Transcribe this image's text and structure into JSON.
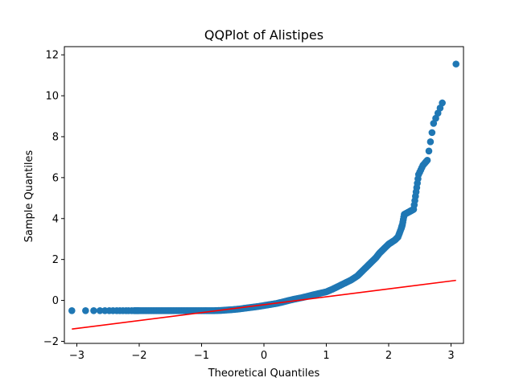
{
  "chart_data": {
    "type": "scatter",
    "title": "QQPlot of Alistipes",
    "xlabel": "Theoretical Quantiles",
    "ylabel": "Sample Quantiles",
    "xlim": [
      -3.2,
      3.2
    ],
    "ylim": [
      -2.1,
      12.4
    ],
    "xticks": [
      -3,
      -2,
      -1,
      0,
      1,
      2,
      3
    ],
    "yticks": [
      -2,
      0,
      2,
      4,
      6,
      8,
      10,
      12
    ],
    "grid": false,
    "colors": {
      "points": "#1f77b4",
      "reference_line": "#ff0000"
    },
    "series": [
      {
        "kind": "points",
        "x": [
          -3.08,
          -2.86,
          -2.73,
          -2.63,
          -2.55,
          -2.48,
          -2.42,
          -2.36,
          -2.31,
          -2.26,
          -2.21,
          -2.17,
          -2.12,
          -2.08,
          -2.04,
          -2.0,
          -1.9,
          -1.8,
          -1.7,
          -1.6,
          -1.5,
          -1.4,
          -1.3,
          -1.2,
          -1.1,
          -1.0,
          -0.9,
          -0.8,
          -0.7,
          -0.6,
          -0.5,
          -0.4,
          -0.3,
          -0.2,
          -0.1,
          0.0,
          0.1,
          0.2,
          0.3,
          0.4,
          0.5,
          0.6,
          0.7,
          0.8,
          0.9,
          1.0,
          1.1,
          1.2,
          1.3,
          1.4,
          1.5,
          1.55,
          1.6,
          1.65,
          1.7,
          1.75,
          1.8,
          1.85,
          1.9,
          1.95,
          2.0,
          2.05,
          2.1,
          2.15,
          2.2,
          2.22,
          2.25,
          2.28,
          2.31,
          2.34,
          2.37,
          2.4,
          2.44,
          2.48,
          2.55,
          2.62,
          2.72,
          2.86,
          3.08
        ],
        "y": [
          -0.5,
          -0.5,
          -0.5,
          -0.5,
          -0.5,
          -0.5,
          -0.5,
          -0.5,
          -0.5,
          -0.5,
          -0.5,
          -0.5,
          -0.5,
          -0.5,
          -0.5,
          -0.5,
          -0.5,
          -0.5,
          -0.5,
          -0.5,
          -0.5,
          -0.5,
          -0.5,
          -0.5,
          -0.5,
          -0.5,
          -0.5,
          -0.5,
          -0.49,
          -0.47,
          -0.45,
          -0.42,
          -0.38,
          -0.34,
          -0.3,
          -0.25,
          -0.2,
          -0.15,
          -0.08,
          0.0,
          0.07,
          0.13,
          0.2,
          0.28,
          0.35,
          0.42,
          0.55,
          0.7,
          0.85,
          1.0,
          1.2,
          1.35,
          1.5,
          1.65,
          1.8,
          1.95,
          2.1,
          2.3,
          2.45,
          2.6,
          2.75,
          2.85,
          2.95,
          3.1,
          3.5,
          3.7,
          4.2,
          4.25,
          4.3,
          4.35,
          4.4,
          4.45,
          5.3,
          6.15,
          6.6,
          6.85,
          8.65,
          9.65,
          11.55
        ]
      },
      {
        "kind": "line",
        "x": [
          -3.08,
          3.08
        ],
        "y": [
          -1.4,
          0.98
        ]
      }
    ]
  }
}
